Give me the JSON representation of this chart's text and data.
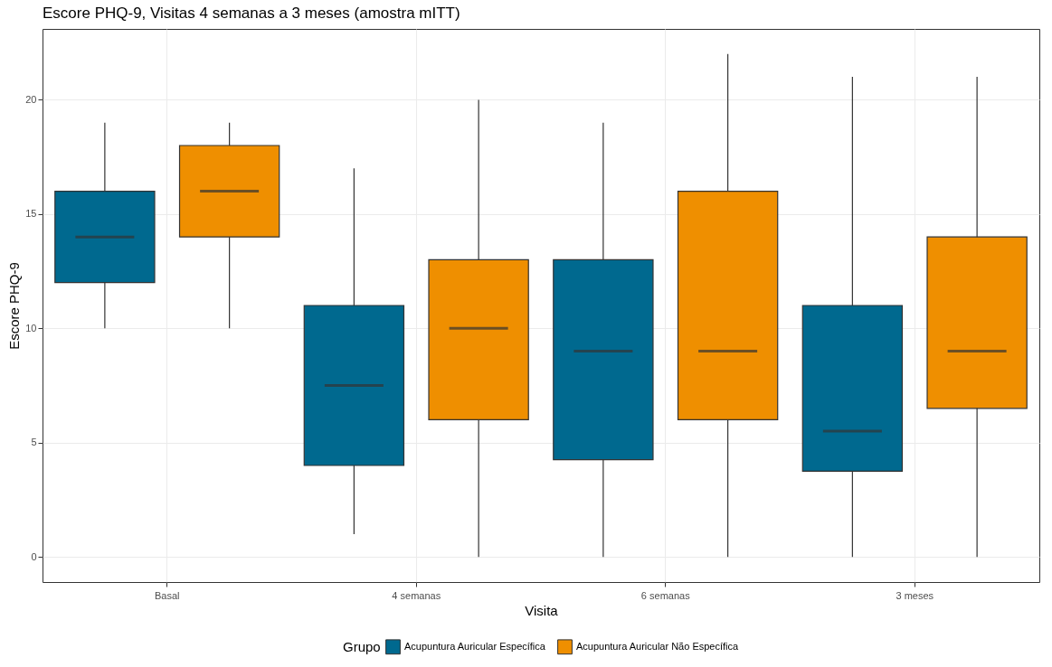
{
  "chart_data": {
    "type": "box",
    "title": "Escore PHQ-9, Visitas 4 semanas a 3 meses (amostra mITT)",
    "xlabel": "Visita",
    "ylabel": "Escore PHQ-9",
    "legend_title": "Grupo",
    "categories": [
      "Basal",
      "4 semanas",
      "6 semanas",
      "3 meses"
    ],
    "series": [
      {
        "name": "Acupuntura Auricular Específica",
        "color": "#00698f",
        "boxes": [
          {
            "low": 10,
            "q1": 12,
            "median": 14,
            "q3": 16,
            "high": 19
          },
          {
            "low": 1,
            "q1": 4,
            "median": 7.5,
            "q3": 11,
            "high": 17
          },
          {
            "low": 0,
            "q1": 4.25,
            "median": 9,
            "q3": 13,
            "high": 19
          },
          {
            "low": 0,
            "q1": 3.75,
            "median": 5.5,
            "q3": 11,
            "high": 21
          }
        ]
      },
      {
        "name": "Acupuntura Auricular Não Específica",
        "color": "#ef8f00",
        "boxes": [
          {
            "low": 10,
            "q1": 14,
            "median": 16,
            "q3": 18,
            "high": 19
          },
          {
            "low": 0,
            "q1": 6,
            "median": 10,
            "q3": 13,
            "high": 20
          },
          {
            "low": 0,
            "q1": 6,
            "median": 9,
            "q3": 16,
            "high": 22
          },
          {
            "low": 0,
            "q1": 6.5,
            "median": 9,
            "q3": 14,
            "high": 21
          }
        ]
      }
    ],
    "ylim": [
      -1.1,
      23.1
    ],
    "yticks": [
      0,
      5,
      10,
      15,
      20
    ],
    "grid": true,
    "legend": "bottom"
  }
}
